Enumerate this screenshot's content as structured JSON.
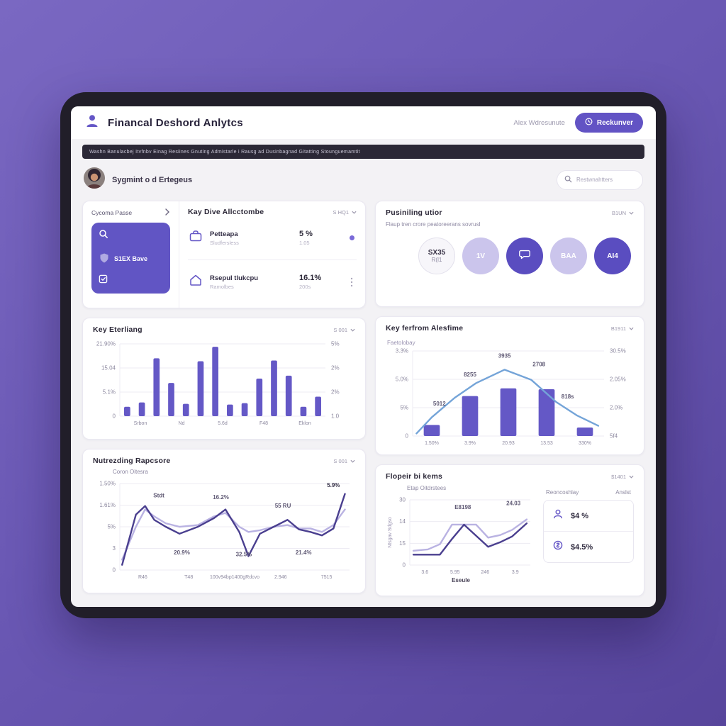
{
  "window": {
    "header": {
      "title": "Financal Deshord Anlytcs",
      "user_name": "Alex Wdresunute",
      "action_button": "Reckunver"
    },
    "notice": "Washn Banulacbej Itvfnbv Einag Resiines Gnuting Admistarle i Rausg ad Dusinbagnad Gitatting Stounguemamtit",
    "greeting": {
      "name": "Sygmint o d Ertegeus",
      "search_placeholder": "Restwnahtters"
    }
  },
  "promo_card": {
    "title": "Cycoma Passe",
    "tile_label": "S1EX Bave"
  },
  "metrics_card": {
    "title": "Kay Dive Allcctombe",
    "dropdown": "S HQ1",
    "rows": [
      {
        "label": "Petteapa",
        "sublabel": "Sludfersless",
        "value": "5 %",
        "subvalue": "1.05"
      },
      {
        "label": "Rsepul tlukcpu",
        "sublabel": "Ramolbes",
        "value": "16.1%",
        "subvalue": "200s"
      }
    ]
  },
  "earnings_card": {
    "title": "Key Eterliang",
    "dropdown": "S 001"
  },
  "trends_card": {
    "title": "Nutrezding Rapcsore",
    "dropdown": "S 001",
    "subtitle": "Coron Oitesra"
  },
  "audience_card": {
    "title": "Pusiniling utior",
    "dropdown": "B1UN",
    "subtitle": "Flaup tren crore peatoreerans sovrusl",
    "circles": [
      {
        "label": "SX35",
        "sublabel": "R(l1",
        "variant": "white"
      },
      {
        "label": "1V",
        "variant": "light"
      },
      {
        "label": "",
        "icon": "chat",
        "variant": "dark"
      },
      {
        "label": "BAA",
        "variant": "light"
      },
      {
        "label": "AI4",
        "variant": "dark"
      }
    ]
  },
  "performance_card": {
    "title": "Key ferfrom Alesfime",
    "dropdown": "B1911"
  },
  "reports_card": {
    "title": "Flopeir bi kems",
    "dropdown": "$1401",
    "subtitle": "Etap Oitdrstees",
    "footer": "Eseule",
    "columns": {
      "col1": "Reoncoshlay",
      "col2": "Anslst"
    },
    "metrics": [
      {
        "icon": "person-icon",
        "value": "$4 %"
      },
      {
        "icon": "coin-icon",
        "value": "$4.5%"
      }
    ]
  },
  "chart_data": [
    {
      "name": "earnings",
      "type": "bar",
      "title": "Key Eterliang",
      "left_ticks": [
        "21.90%",
        "15.04",
        "5.1%",
        "0"
      ],
      "right_ticks": [
        "5%",
        "2%",
        "2%",
        "1.0"
      ],
      "x_ticks": [
        "Srbon",
        "Nd",
        "5.6d",
        "F48",
        "Eklon"
      ],
      "values": [
        13,
        19,
        80,
        46,
        17,
        76,
        96,
        16,
        18,
        52,
        77,
        56,
        13,
        27
      ],
      "ylim_note": "values are percent of plot height; left axis 0 to 21.90%"
    },
    {
      "name": "trends",
      "type": "line",
      "title": "Nutrezding Rapcsore",
      "left_ticks": [
        "1.50%",
        "1.61%",
        "5%",
        "3",
        "0"
      ],
      "x_ticks": [
        "R46",
        "T48",
        "100v94bp1400gRdcvo",
        "2.946",
        "7515"
      ],
      "series": [
        {
          "name": "light",
          "color": "#b9b2e2",
          "width": 2.4,
          "points": [
            [
              1,
              12
            ],
            [
              7,
              50
            ],
            [
              11,
              70
            ],
            [
              15,
              62
            ],
            [
              20,
              54
            ],
            [
              26,
              50
            ],
            [
              34,
              52
            ],
            [
              41,
              62
            ],
            [
              46,
              66
            ],
            [
              52,
              50
            ],
            [
              56,
              44
            ],
            [
              61,
              46
            ],
            [
              67,
              50
            ],
            [
              73,
              52
            ],
            [
              78,
              48
            ],
            [
              83,
              48
            ],
            [
              88,
              44
            ],
            [
              93,
              52
            ],
            [
              98,
              70
            ]
          ]
        },
        {
          "name": "dark",
          "color": "#4a3f8f",
          "width": 2.4,
          "points": [
            [
              1,
              6
            ],
            [
              7,
              64
            ],
            [
              11,
              74
            ],
            [
              15,
              58
            ],
            [
              20,
              50
            ],
            [
              26,
              42
            ],
            [
              34,
              50
            ],
            [
              41,
              60
            ],
            [
              46,
              70
            ],
            [
              52,
              44
            ],
            [
              56,
              16
            ],
            [
              61,
              42
            ],
            [
              67,
              50
            ],
            [
              73,
              58
            ],
            [
              78,
              47
            ],
            [
              83,
              44
            ],
            [
              88,
              40
            ],
            [
              93,
              48
            ],
            [
              98,
              88
            ]
          ]
        }
      ],
      "annotations": [
        {
          "text": "Stdt",
          "x": 17,
          "y": 16
        },
        {
          "text": "16.2%",
          "x": 44,
          "y": 18
        },
        {
          "text": "55 RU",
          "x": 71,
          "y": 28
        },
        {
          "text": "5.9%",
          "x": 93,
          "y": 4,
          "bold": true
        },
        {
          "text": "20.9%",
          "x": 27,
          "y": 82
        },
        {
          "text": "32.5%",
          "x": 54,
          "y": 84
        },
        {
          "text": "21.4%",
          "x": 80,
          "y": 82
        }
      ]
    },
    {
      "name": "performance",
      "type": "combo",
      "title": "Key ferfrom Alesfime",
      "ylabel_left": "Faetolobay",
      "left_ticks": [
        "3.3%",
        "5.0%",
        "5%",
        "0"
      ],
      "right_ticks": [
        "30.5%",
        "2.05%",
        "2.0%",
        "5f4"
      ],
      "x_ticks": [
        "1.50%",
        "3.9%",
        "20.93",
        "13.53",
        "330%"
      ],
      "values": [
        13,
        47,
        56,
        55,
        10
      ],
      "series": [
        {
          "name": "trend",
          "color": "#74a4d8",
          "width": 2.4,
          "points": [
            [
              2,
              3
            ],
            [
              10,
              22
            ],
            [
              22,
              45
            ],
            [
              33,
              62
            ],
            [
              48,
              78
            ],
            [
              62,
              66
            ],
            [
              75,
              40
            ],
            [
              86,
              24
            ],
            [
              97,
              12
            ]
          ]
        }
      ],
      "annotations": [
        {
          "text": "5012",
          "x": 14,
          "y": 64
        },
        {
          "text": "8255",
          "x": 30,
          "y": 30
        },
        {
          "text": "3935",
          "x": 48,
          "y": 8
        },
        {
          "text": "2708",
          "x": 66,
          "y": 18
        },
        {
          "text": "818s",
          "x": 81,
          "y": 56
        }
      ]
    },
    {
      "name": "reports",
      "type": "line",
      "title": "Flopeir bi kems",
      "margin_left": 34,
      "ylabel_rot": "Ntsgav Sdgso",
      "left_ticks": [
        "30",
        "14",
        "15",
        "0"
      ],
      "x_ticks": [
        "3.6",
        "5.95",
        "246",
        "3.9"
      ],
      "series": [
        {
          "name": "light",
          "color": "#b9b2e2",
          "width": 2.4,
          "points": [
            [
              3,
              22
            ],
            [
              15,
              24
            ],
            [
              25,
              32
            ],
            [
              35,
              62
            ],
            [
              45,
              62
            ],
            [
              55,
              62
            ],
            [
              65,
              42
            ],
            [
              75,
              46
            ],
            [
              85,
              54
            ],
            [
              97,
              70
            ]
          ]
        },
        {
          "name": "dark",
          "color": "#4a3f8f",
          "width": 2.4,
          "points": [
            [
              3,
              16
            ],
            [
              15,
              16
            ],
            [
              25,
              16
            ],
            [
              35,
              40
            ],
            [
              45,
              62
            ],
            [
              55,
              45
            ],
            [
              65,
              28
            ],
            [
              75,
              35
            ],
            [
              85,
              44
            ],
            [
              97,
              64
            ]
          ]
        }
      ],
      "annotations": [
        {
          "text": "E8198",
          "x": 44,
          "y": 14
        },
        {
          "text": "24.03",
          "x": 86,
          "y": 8
        }
      ]
    }
  ],
  "colors": {
    "accent": "#6253c4",
    "bar": "#6458c6",
    "tile": "#6155c4",
    "line_dark": "#4a3f8f",
    "line_light": "#b9b2e2",
    "line_blue": "#74a4d8",
    "background": "#6a58b4",
    "frame": "#211e29",
    "screen": "#f3f2f5",
    "notice_bg": "#2b2836"
  }
}
